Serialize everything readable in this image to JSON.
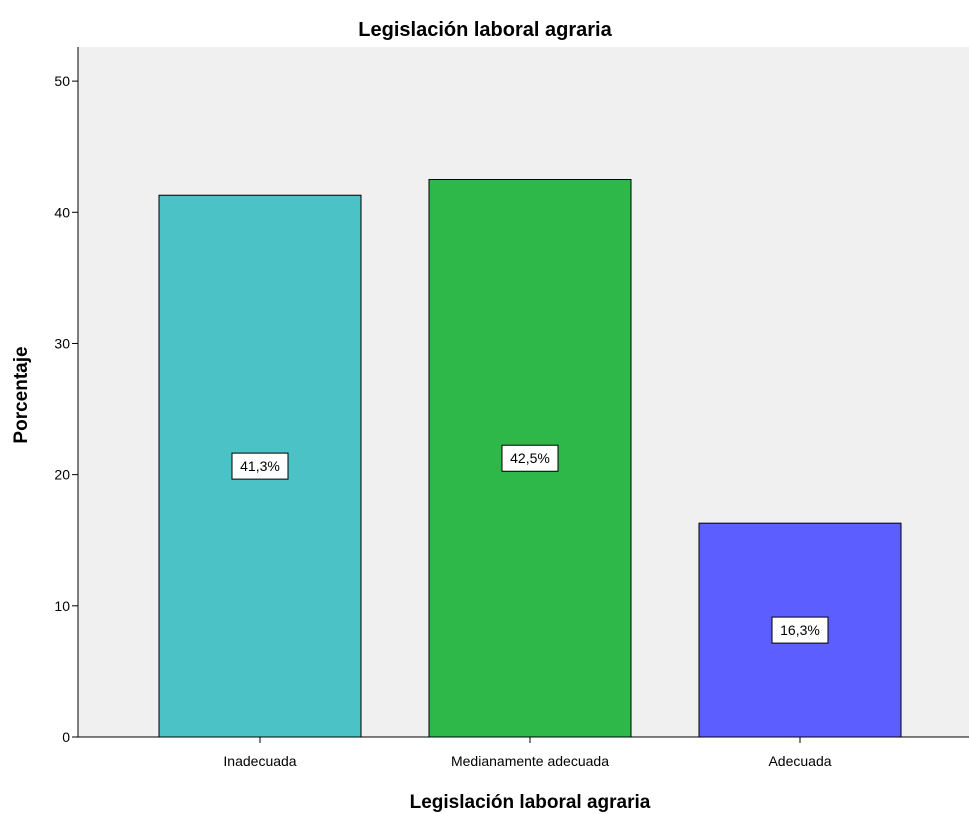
{
  "chart_data": {
    "type": "bar",
    "title": "Legislación laboral agraria",
    "xlabel": "Legislación laboral agraria",
    "ylabel": "Porcentaje",
    "categories": [
      "Inadecuada",
      "Medianamente adecuada",
      "Adecuada"
    ],
    "values": [
      41.3,
      42.5,
      16.3
    ],
    "data_labels": [
      "41,3%",
      "42,5%",
      "16,3%"
    ],
    "colors": [
      "#4bc3c6",
      "#2eb84a",
      "#5d5eff"
    ],
    "ylim": [
      0,
      50
    ],
    "yticks": [
      0,
      10,
      20,
      30,
      40,
      50
    ],
    "ytick_labels": [
      "0",
      "10",
      "20",
      "30",
      "40",
      "50"
    ],
    "grid": false,
    "plot_background": "#f0f0f0"
  }
}
